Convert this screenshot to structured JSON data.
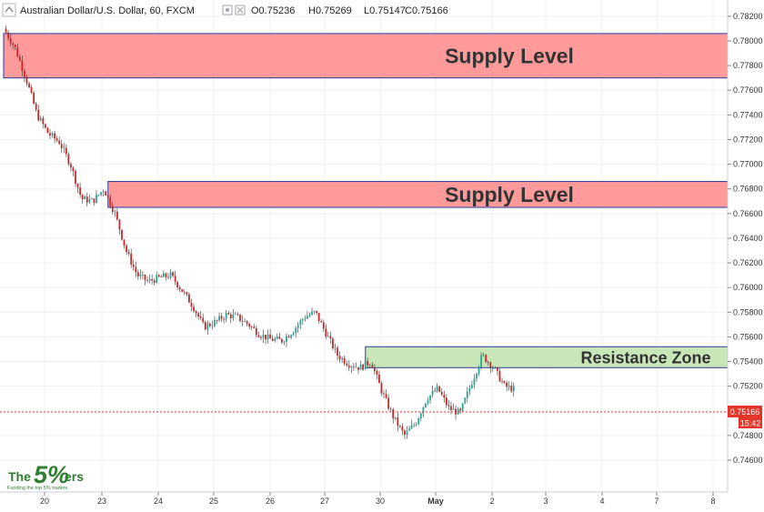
{
  "header": {
    "symbol": "Australian Dollar/U.S. Dollar, 60, FXCM",
    "open": "O0.75236",
    "high": "H0.75269",
    "low": "L0.75147",
    "close": "C0.75166",
    "icons": [
      "collapse-icon",
      "settings-icon",
      "close-icon"
    ]
  },
  "price_tag": {
    "price": "0.75166",
    "countdown": "15:42",
    "color": "#e5342a"
  },
  "logo": {
    "text": "The 5%ers",
    "tagline": "Funding the top 5% traders",
    "color": "#2e7d32"
  },
  "zones": [
    {
      "label": "Supply Level",
      "from": 0.777,
      "to": 0.7806,
      "x_start": 0.0,
      "kind": "supply"
    },
    {
      "label": "Supply Level",
      "from": 0.7665,
      "to": 0.7686,
      "x_start": 3.75,
      "kind": "supply"
    },
    {
      "label": "Resistance Zone",
      "from": 0.7535,
      "to": 0.7552,
      "x_start": 13.0,
      "kind": "resistance"
    }
  ],
  "colors": {
    "supply_fill": "#ff9a9a",
    "supply_stroke": "#2a3a9a",
    "resistance_fill": "#c8e6b8",
    "resistance_stroke": "#2a3a9a",
    "up_candle": "#26a69a",
    "down_candle": "#c62828",
    "grid": "#eef0f4"
  },
  "chart_data": {
    "type": "line",
    "title": "Australian Dollar/U.S. Dollar, 60, FXCM",
    "xlabel": "",
    "ylabel": "",
    "x_ticks": [
      "20",
      "23",
      "24",
      "25",
      "26",
      "27",
      "30",
      "May",
      "2",
      "3",
      "4",
      "7",
      "8"
    ],
    "y_ticks": [
      "0.78200",
      "0.78000",
      "0.77800",
      "0.77600",
      "0.77400",
      "0.77200",
      "0.77000",
      "0.76800",
      "0.76600",
      "0.76400",
      "0.76200",
      "0.76000",
      "0.75800",
      "0.75600",
      "0.75400",
      "0.75200",
      "0.75000",
      "0.74800",
      "0.74600"
    ],
    "ylim": [
      0.7455,
      0.783
    ],
    "grid": true,
    "x": [
      0.0,
      0.4,
      0.8,
      1.2,
      1.6,
      2.0,
      2.4,
      2.8,
      3.2,
      3.6,
      4.0,
      4.4,
      4.8,
      5.2,
      5.6,
      6.0,
      6.4,
      6.8,
      7.2,
      7.6,
      8.0,
      8.4,
      8.8,
      9.2,
      9.6,
      10.0,
      10.4,
      10.8,
      11.2,
      11.6,
      12.0,
      12.4,
      12.8,
      13.2,
      13.6,
      14.0,
      14.4,
      14.8,
      15.2,
      15.6,
      16.0,
      16.4,
      16.8,
      17.2,
      17.6,
      18.0,
      18.4
    ],
    "values": [
      0.781,
      0.7795,
      0.777,
      0.774,
      0.7725,
      0.7718,
      0.77,
      0.7672,
      0.767,
      0.768,
      0.766,
      0.763,
      0.761,
      0.7605,
      0.7608,
      0.761,
      0.7598,
      0.7585,
      0.7568,
      0.7572,
      0.7578,
      0.7576,
      0.757,
      0.7562,
      0.7558,
      0.7557,
      0.7565,
      0.7576,
      0.758,
      0.7562,
      0.7545,
      0.7538,
      0.7535,
      0.754,
      0.7515,
      0.7495,
      0.748,
      0.749,
      0.751,
      0.7518,
      0.7502,
      0.7498,
      0.7522,
      0.7545,
      0.7535,
      0.752,
      0.7517
    ]
  }
}
